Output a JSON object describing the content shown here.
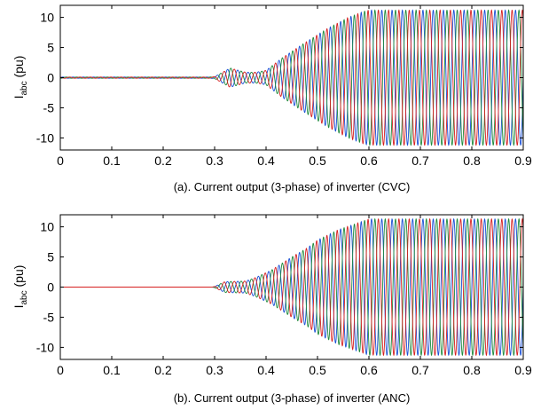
{
  "chart_data": [
    {
      "type": "line",
      "caption": "(a). Current output (3-phase) of inverter (CVC)",
      "ylabel_main": "I",
      "ylabel_sub": "abc",
      "ylabel_unit": "(pu)",
      "xlim": [
        0,
        0.9
      ],
      "ylim": [
        -12,
        12
      ],
      "xticks": [
        0,
        0.1,
        0.2,
        0.3,
        0.4,
        0.5,
        0.6,
        0.7,
        0.8,
        0.9
      ],
      "xtick_labels": [
        "0",
        "0.1",
        "0.2",
        "0.3",
        "0.4",
        "0.5",
        "0.6",
        "0.7",
        "0.8",
        "0.9"
      ],
      "yticks": [
        10,
        5,
        0,
        -5,
        -10
      ],
      "ytick_labels": [
        "10",
        "5",
        "0",
        "-5",
        "-10"
      ],
      "grid": false,
      "frequency_hz": 50,
      "envelope": {
        "t": [
          0,
          0.29,
          0.3,
          0.33,
          0.36,
          0.38,
          0.4,
          0.43,
          0.47,
          0.52,
          0.56,
          0.59,
          0.6,
          0.9
        ],
        "amplitude": [
          0.1,
          0.1,
          0.15,
          1.6,
          0.9,
          0.9,
          1.2,
          3.2,
          5.5,
          8.2,
          10.0,
          11.0,
          11.2,
          11.2
        ]
      },
      "series": [
        {
          "phase_deg": 0,
          "color": "#1a4fd6"
        },
        {
          "phase_deg": -120,
          "color": "#1f8a3c"
        },
        {
          "phase_deg": 120,
          "color": "#d62020"
        }
      ]
    },
    {
      "type": "line",
      "caption": "(b). Current output (3-phase) of inverter (ANC)",
      "ylabel_main": "I",
      "ylabel_sub": "abc",
      "ylabel_unit": "(pu)",
      "xlim": [
        0,
        0.9
      ],
      "ylim": [
        -12,
        12
      ],
      "xticks": [
        0,
        0.1,
        0.2,
        0.3,
        0.4,
        0.5,
        0.6,
        0.7,
        0.8,
        0.9
      ],
      "xtick_labels": [
        "0",
        "0.1",
        "0.2",
        "0.3",
        "0.4",
        "0.5",
        "0.6",
        "0.7",
        "0.8",
        "0.9"
      ],
      "yticks": [
        10,
        5,
        0,
        -5,
        -10
      ],
      "ytick_labels": [
        "10",
        "5",
        "0",
        "-5",
        "-10"
      ],
      "grid": false,
      "frequency_hz": 50,
      "envelope": {
        "t": [
          0,
          0.295,
          0.3,
          0.32,
          0.36,
          0.38,
          0.41,
          0.45,
          0.48,
          0.5,
          0.54,
          0.6,
          0.9
        ],
        "amplitude": [
          0,
          0,
          0.1,
          0.9,
          1.0,
          1.6,
          2.8,
          5.0,
          6.5,
          7.8,
          9.5,
          11.3,
          11.3
        ]
      },
      "series": [
        {
          "phase_deg": 0,
          "color": "#1a4fd6"
        },
        {
          "phase_deg": -120,
          "color": "#1f8a3c"
        },
        {
          "phase_deg": 120,
          "color": "#d62020"
        }
      ]
    }
  ]
}
